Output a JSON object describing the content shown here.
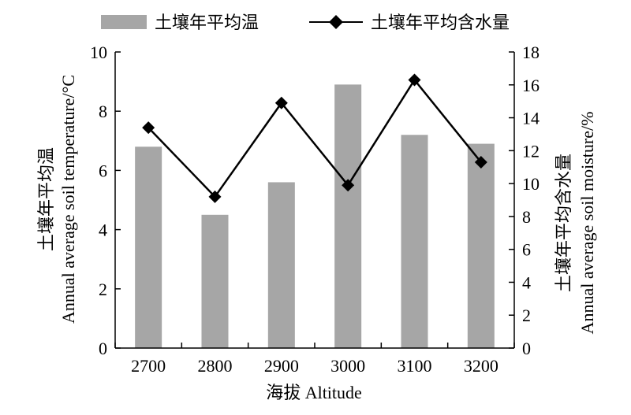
{
  "chart_data": {
    "type": "bar+line",
    "categories": [
      "2700",
      "2800",
      "2900",
      "3000",
      "3100",
      "3200"
    ],
    "series": [
      {
        "name": "土壤年平均温",
        "type": "bar",
        "axis": "left",
        "color": "#a6a6a6",
        "values": [
          6.8,
          4.5,
          5.6,
          8.9,
          7.2,
          6.9
        ]
      },
      {
        "name": "土壤年平均含水量",
        "type": "line",
        "axis": "right",
        "color": "#000000",
        "marker": "diamond",
        "values": [
          13.4,
          9.2,
          14.9,
          9.9,
          16.3,
          11.3
        ]
      }
    ],
    "xlabel": "海拔 Altitude",
    "ylabel_left": [
      "土壤年平均温",
      "Annual average soil temperature/°C"
    ],
    "ylabel_right": [
      "土壤年平均含水量",
      "Annual average soil moisture/%"
    ],
    "ylim_left": [
      0,
      10
    ],
    "ylim_right": [
      0,
      18
    ],
    "yticks_left": [
      "0",
      "2",
      "4",
      "6",
      "8",
      "10"
    ],
    "yticks_right": [
      "0",
      "2",
      "4",
      "6",
      "8",
      "10",
      "12",
      "14",
      "16",
      "18"
    ],
    "legend_position": "top",
    "grid": false
  }
}
